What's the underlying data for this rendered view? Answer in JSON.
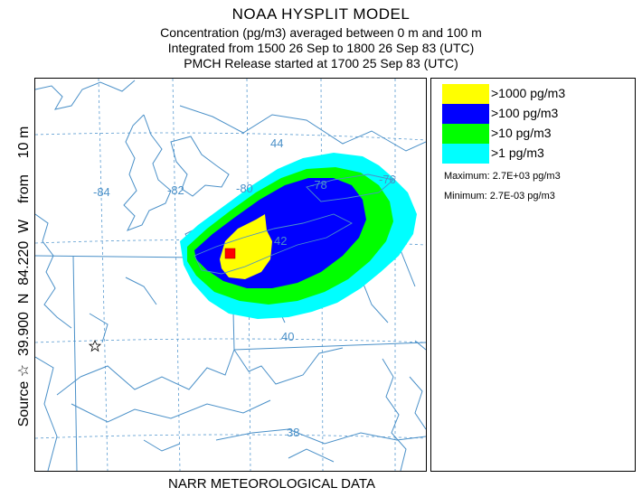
{
  "header": {
    "title": "NOAA HYSPLIT MODEL",
    "line2": "Concentration  (pg/m3) averaged between     0 m and   100 m",
    "line3": "Integrated from 1500 26 Sep to 1800 26 Sep 83 (UTC)",
    "line4": "PMCH Release started at 1700 25 Sep 83 (UTC)"
  },
  "source_label": "Source ☆  39.900  N  84.220  W    from    10 m",
  "footer": "NARR METEOROLOGICAL DATA",
  "map": {
    "lat_labels": [
      "44",
      "42",
      "40",
      "38"
    ],
    "lon_labels": [
      "-84",
      "-82",
      "-80",
      "-78",
      "-76"
    ],
    "source_marker": "star-icon",
    "colors": {
      "water_lines": "#4a90c8",
      "boundaries": "#4a90c8",
      "graticule": "#5a9bd0"
    }
  },
  "legend": {
    "items": [
      {
        "label": ">1000 pg/m3",
        "color": "#ffff00"
      },
      {
        "label": ">100 pg/m3",
        "color": "#0000ff"
      },
      {
        "label": ">10 pg/m3",
        "color": "#00ff00"
      },
      {
        "label": ">1 pg/m3",
        "color": "#00ffff"
      }
    ],
    "maximum": "Maximum: 2.7E+03 pg/m3",
    "minimum": "Minimum: 2.7E-03 pg/m3"
  }
}
